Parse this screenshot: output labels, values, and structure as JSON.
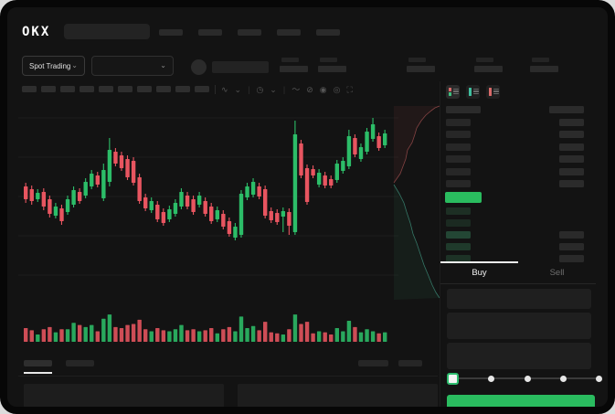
{
  "header": {
    "logo": "OKX",
    "nav_items": 5
  },
  "symbol_bar": {
    "market_selector": {
      "label": "Spot Trading",
      "chevron": "⌄"
    },
    "pair_chevron": "⌄",
    "stat_pairs": 5
  },
  "chart_toolbar": {
    "placeholder_buttons": 10,
    "icons": [
      {
        "name": "chart-type-icon",
        "glyph": "∿"
      },
      {
        "name": "chevron-down-icon",
        "glyph": "⌄"
      },
      {
        "name": "divider",
        "glyph": "|"
      },
      {
        "name": "interval-icon",
        "glyph": "◷"
      },
      {
        "name": "chevron-down-icon",
        "glyph": "⌄"
      },
      {
        "name": "divider",
        "glyph": "|"
      },
      {
        "name": "line-tool-icon",
        "glyph": "〜"
      },
      {
        "name": "eraser-icon",
        "glyph": "⊘"
      },
      {
        "name": "camera-icon",
        "glyph": "◉"
      },
      {
        "name": "target-icon",
        "glyph": "◎"
      },
      {
        "name": "fullscreen-icon",
        "glyph": "⛶"
      }
    ]
  },
  "colors": {
    "green": "#2cbd68",
    "red": "#e85560",
    "grid": "#1c1c1c",
    "depth_ask_stroke": "#b05555",
    "depth_ask_fill": "rgba(200,90,90,0.08)",
    "depth_bid_stroke": "#3d8f7a",
    "depth_bid_fill": "rgba(60,170,120,0.08)"
  },
  "chart_data": {
    "type": "candlestick",
    "title": "",
    "xlabel": "",
    "ylabel": "",
    "price_unit": "normalized (no axis labels visible)",
    "grid": "faint-horizontal",
    "candles": {
      "open": [
        135,
        132,
        121,
        129,
        121,
        103,
        111,
        107,
        115,
        129,
        125,
        135,
        147,
        122,
        140,
        173,
        169,
        165,
        163,
        145,
        123,
        109,
        115,
        107,
        99,
        105,
        113,
        125,
        121,
        115,
        119,
        113,
        99,
        105,
        97,
        79,
        82,
        123,
        126,
        135,
        132,
        108,
        106,
        102,
        107,
        85,
        182,
        155,
        154,
        137,
        147,
        143,
        142,
        152,
        157,
        188,
        165,
        173,
        187,
        190,
        180
      ],
      "high": [
        139,
        136,
        132,
        133,
        125,
        117,
        115,
        125,
        135,
        133,
        144,
        153,
        151,
        160,
        188,
        177,
        173,
        169,
        167,
        149,
        127,
        123,
        119,
        111,
        114,
        121,
        133,
        129,
        125,
        129,
        123,
        117,
        113,
        109,
        101,
        95,
        131,
        139,
        144,
        139,
        136,
        112,
        110,
        112,
        111,
        207,
        186,
        159,
        158,
        154,
        151,
        147,
        164,
        167,
        197,
        192,
        182,
        199,
        210,
        194,
        197
      ],
      "low": [
        117,
        115,
        118,
        109,
        101,
        100,
        93,
        104,
        112,
        116,
        122,
        132,
        134,
        119,
        135,
        157,
        152,
        142,
        136,
        116,
        108,
        106,
        96,
        92,
        96,
        102,
        110,
        110,
        104,
        112,
        102,
        94,
        96,
        88,
        80,
        76,
        79,
        120,
        123,
        121,
        100,
        95,
        93,
        85,
        82,
        82,
        144,
        115,
        144,
        134,
        133,
        133,
        139,
        149,
        154,
        167,
        162,
        170,
        184,
        174,
        177
      ],
      "close": [
        121,
        119,
        128,
        113,
        105,
        113,
        97,
        121,
        131,
        119,
        140,
        149,
        137,
        153,
        175,
        160,
        155,
        145,
        139,
        119,
        111,
        119,
        99,
        95,
        110,
        117,
        129,
        113,
        107,
        125,
        105,
        97,
        109,
        91,
        83,
        91,
        127,
        135,
        140,
        124,
        103,
        98,
        96,
        108,
        92,
        192,
        147,
        118,
        147,
        150,
        136,
        136,
        160,
        163,
        190,
        170,
        178,
        195,
        203,
        177,
        193
      ]
    },
    "volume": [
      13,
      11,
      7,
      12,
      14,
      9,
      12,
      12,
      18,
      16,
      14,
      16,
      10,
      22,
      26,
      14,
      13,
      16,
      17,
      21,
      12,
      10,
      13,
      11,
      10,
      12,
      16,
      11,
      12,
      10,
      11,
      13,
      8,
      12,
      14,
      10,
      24,
      13,
      15,
      11,
      19,
      9,
      8,
      7,
      12,
      26,
      17,
      19,
      8,
      10,
      9,
      7,
      13,
      10,
      20,
      14,
      9,
      12,
      10,
      8,
      9
    ],
    "depth_profile": {
      "asks_curve": [
        [
          2,
          86
        ],
        [
          9,
          76
        ],
        [
          12,
          68
        ],
        [
          15,
          60
        ],
        [
          17,
          50
        ],
        [
          22,
          42
        ],
        [
          25,
          33
        ],
        [
          27,
          26
        ],
        [
          32,
          18
        ],
        [
          37,
          12
        ],
        [
          43,
          7
        ],
        [
          47,
          4
        ],
        [
          52,
          2
        ]
      ],
      "bids_curve": [
        [
          2,
          88
        ],
        [
          8,
          98
        ],
        [
          13,
          108
        ],
        [
          16,
          118
        ],
        [
          20,
          130
        ],
        [
          23,
          142
        ],
        [
          27,
          152
        ],
        [
          31,
          164
        ],
        [
          35,
          176
        ],
        [
          40,
          188
        ],
        [
          44,
          198
        ],
        [
          48,
          206
        ],
        [
          52,
          212
        ]
      ]
    }
  },
  "order_book": {
    "mode_icons": [
      "orderbook-combined-icon",
      "orderbook-bids-icon",
      "orderbook-asks-icon"
    ],
    "ask_rows": 6,
    "last_price_color": "#2abc5f",
    "bid_rows": [
      {
        "tint": "#1d2f24",
        "right": false
      },
      {
        "tint": "#1b2a21",
        "right": false
      },
      {
        "tint": "#234634",
        "right": true
      },
      {
        "tint": "#1f3a2b",
        "right": true
      },
      {
        "tint": "#1d3226",
        "right": true
      }
    ]
  },
  "trade_panel": {
    "tabs": [
      {
        "label": "Buy",
        "active": true
      },
      {
        "label": "Sell",
        "active": false
      }
    ],
    "fields": 3,
    "slider": {
      "positions": 5,
      "value_index": 0
    },
    "submit_color": "#2abc5f"
  },
  "bottom_bar": {
    "left_tabs": 2,
    "right_buttons": 2,
    "panels": 2
  }
}
